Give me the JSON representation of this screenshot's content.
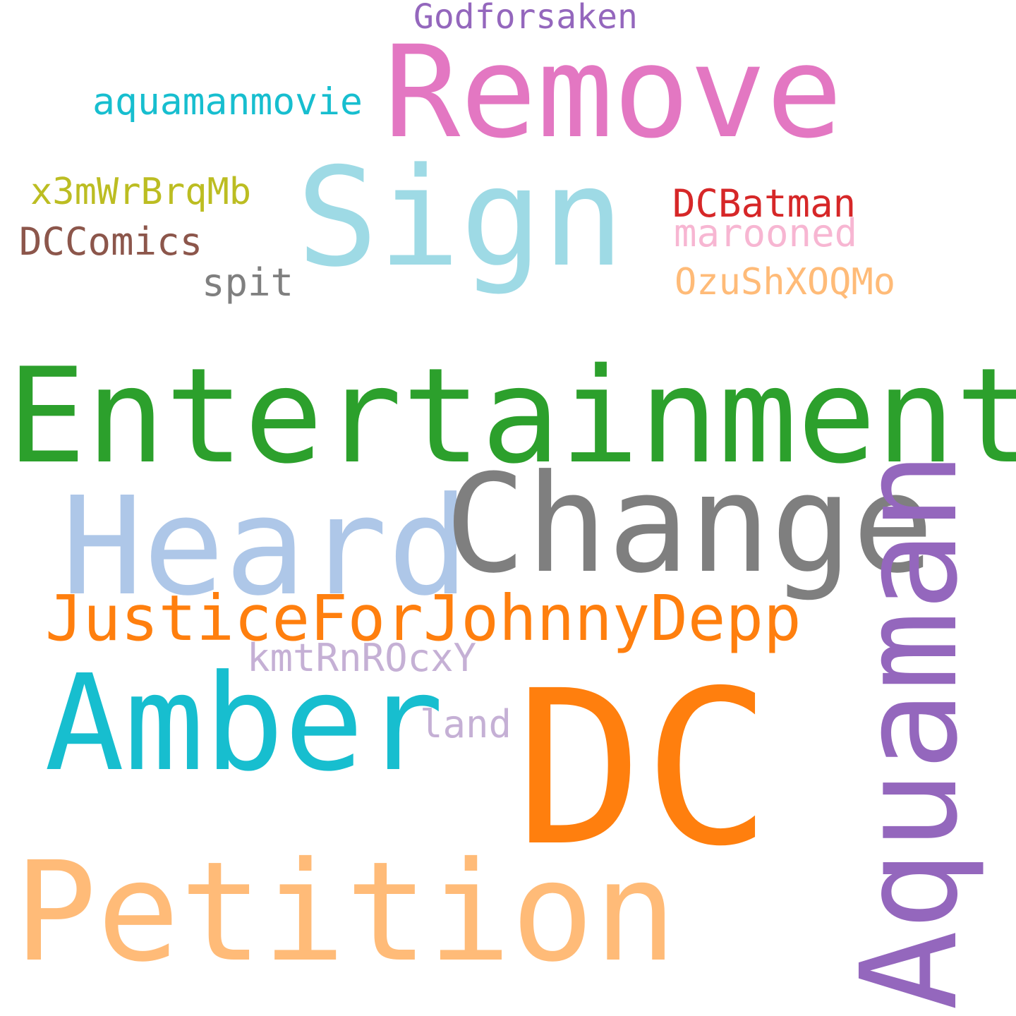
{
  "words": [
    {
      "text": "Godforsaken",
      "color": "#9467bd"
    },
    {
      "text": "Remove",
      "color": "#e377c2"
    },
    {
      "text": "aquamanmovie",
      "color": "#17becf"
    },
    {
      "text": "Sign",
      "color": "#9edae5"
    },
    {
      "text": "x3mWrBrqMb",
      "color": "#bcbd22"
    },
    {
      "text": "DCBatman",
      "color": "#d62728"
    },
    {
      "text": "marooned",
      "color": "#f7b6d2"
    },
    {
      "text": "DCComics",
      "color": "#8c564b"
    },
    {
      "text": "spit",
      "color": "#7f7f7f"
    },
    {
      "text": "OzuShXOQMo",
      "color": "#ffbb78"
    },
    {
      "text": "Entertainment",
      "color": "#2ca02c"
    },
    {
      "text": "Heard",
      "color": "#aec7e8"
    },
    {
      "text": "Change",
      "color": "#7f7f7f"
    },
    {
      "text": "Aquaman",
      "color": "#9467bd"
    },
    {
      "text": "JusticeForJohnnyDepp",
      "color": "#ff7f0e"
    },
    {
      "text": "kmtRnROcxY",
      "color": "#c5b0d5"
    },
    {
      "text": "Amber",
      "color": "#17becf"
    },
    {
      "text": "land",
      "color": "#c5b0d5"
    },
    {
      "text": "DC",
      "color": "#ff7f0e"
    },
    {
      "text": "Petition",
      "color": "#ffbb78"
    }
  ]
}
